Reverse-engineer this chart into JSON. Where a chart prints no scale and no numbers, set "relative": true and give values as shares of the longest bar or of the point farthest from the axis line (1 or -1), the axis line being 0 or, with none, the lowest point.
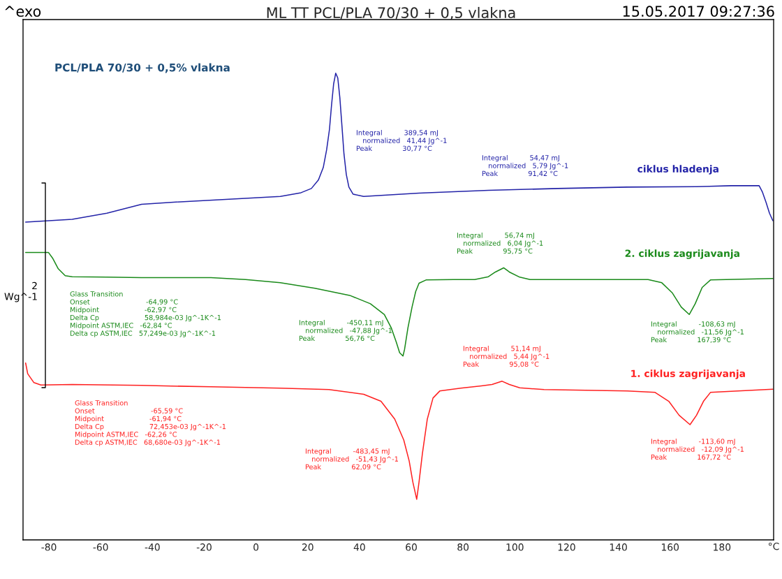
{
  "chart_data": {
    "type": "line",
    "relative": true,
    "title": "ML TT PCL/PLA 70/30 + 0,5 vlakna",
    "subtitle": "PCL/PLA 70/30 + 0,5% vlakna",
    "xlabel": "°C",
    "xlim": [
      -90,
      200
    ],
    "xticks": [
      -80,
      -60,
      -40,
      -20,
      0,
      20,
      40,
      60,
      80,
      100,
      120,
      140,
      160,
      180
    ],
    "tick_labels": "x",
    "grid": false,
    "legend": false,
    "series": [
      {
        "name": "ciklus hladenja",
        "color": "#2323a8",
        "x": [
          -89.0,
          -71.0,
          -57.6,
          -44.2,
          -30.8,
          -6.7,
          9.4,
          17.4,
          21.4,
          24.1,
          26.0,
          27.3,
          28.4,
          29.2,
          30.0,
          30.8,
          31.6,
          32.4,
          33.2,
          34.0,
          34.9,
          35.9,
          37.5,
          41.6,
          63.0,
          89.8,
          116.6,
          143.4,
          170.2,
          183.6,
          194.4,
          195.7,
          197.1,
          198.4,
          199.7
        ],
        "values": [
          0.681,
          0.687,
          0.7,
          0.719,
          0.724,
          0.731,
          0.736,
          0.744,
          0.753,
          0.771,
          0.798,
          0.836,
          0.88,
          0.932,
          0.977,
          1.0,
          0.99,
          0.948,
          0.888,
          0.827,
          0.783,
          0.756,
          0.741,
          0.736,
          0.743,
          0.749,
          0.753,
          0.756,
          0.757,
          0.759,
          0.759,
          0.745,
          0.723,
          0.7,
          0.684
        ]
      },
      {
        "name": "2. ciklus zagrijavanja",
        "color": "#1a8a1a",
        "x": [
          -89.0,
          -80.2,
          -78.6,
          -76.4,
          -73.7,
          -71.0,
          -57.6,
          -44.2,
          -17.4,
          -4.0,
          9.4,
          22.8,
          36.2,
          44.2,
          49.6,
          52.3,
          54.2,
          55.5,
          56.8,
          57.4,
          58.7,
          60.3,
          61.7,
          63.0,
          65.7,
          76.4,
          84.5,
          89.8,
          92.5,
          95.7,
          97.9,
          101.9,
          105.9,
          143.4,
          151.5,
          156.8,
          160.9,
          164.3,
          167.4,
          169.7,
          172.4,
          175.6,
          199.7
        ],
        "values": [
          0.616,
          0.616,
          0.604,
          0.581,
          0.566,
          0.564,
          0.563,
          0.562,
          0.562,
          0.558,
          0.551,
          0.539,
          0.524,
          0.506,
          0.483,
          0.454,
          0.424,
          0.401,
          0.394,
          0.408,
          0.454,
          0.499,
          0.532,
          0.55,
          0.557,
          0.558,
          0.558,
          0.564,
          0.574,
          0.583,
          0.574,
          0.563,
          0.558,
          0.558,
          0.558,
          0.551,
          0.529,
          0.499,
          0.483,
          0.506,
          0.541,
          0.557,
          0.56
        ]
      },
      {
        "name": "1. ciklus zagrijavanja",
        "color": "#ff2020",
        "x": [
          -89.0,
          -88.2,
          -85.8,
          -83.1,
          -71.0,
          -44.2,
          -17.4,
          9.4,
          28.2,
          41.6,
          48.3,
          53.6,
          57.1,
          59.2,
          60.6,
          62.1,
          63.0,
          64.3,
          66.2,
          68.4,
          71.0,
          79.1,
          87.1,
          91.2,
          95.1,
          97.9,
          101.9,
          111.3,
          143.4,
          154.2,
          159.5,
          163.5,
          167.7,
          170.2,
          172.9,
          175.6,
          199.7
        ],
        "values": [
          0.379,
          0.356,
          0.337,
          0.332,
          0.333,
          0.331,
          0.328,
          0.325,
          0.322,
          0.312,
          0.297,
          0.259,
          0.214,
          0.169,
          0.124,
          0.087,
          0.124,
          0.185,
          0.259,
          0.304,
          0.319,
          0.325,
          0.33,
          0.333,
          0.34,
          0.333,
          0.326,
          0.322,
          0.319,
          0.316,
          0.297,
          0.267,
          0.247,
          0.267,
          0.297,
          0.316,
          0.323
        ]
      }
    ],
    "annotations": [
      "^exo",
      "15.05.2017 09:27:36",
      "2\nWg^-1",
      "Integral          389,54 mJ\n   normalized   41,44 Jg^-1\nPeak              30,77 °C",
      "Integral          54,47 mJ\n   normalized   5,79 Jg^-1\nPeak              91,42 °C",
      "Glass Transition\nOnset                          -64,99 °C\nMidpoint                     -62,97 °C\nDelta Cp                     58,984e-03 Jg^-1K^-1\nMidpoint ASTM,IEC   -62,84 °C\nDelta cp ASTM,IEC   57,249e-03 Jg^-1K^-1",
      "Integral          -450,11 mJ\n   normalized   -47,88 Jg^-1\nPeak              56,76 °C",
      "Integral          56,74 mJ\n   normalized   6,04 Jg^-1\nPeak              95,75 °C",
      "Integral          -108,63 mJ\n   normalized   -11,56 Jg^-1\nPeak              167,39 °C",
      "Glass Transition\nOnset                          -65,59 °C\nMidpoint                     -61,94 °C\nDelta Cp                     72,453e-03 Jg^-1K^-1\nMidpoint ASTM,IEC   -62,26 °C\nDelta cp ASTM,IEC   68,680e-03 Jg^-1K^-1",
      "Integral          -483,45 mJ\n   normalized   -51,43 Jg^-1\nPeak              62,09 °C",
      "Integral          51,14 mJ\n   normalized   5,44 Jg^-1\nPeak              95,08 °C",
      "Integral          -113,60 mJ\n   normalized   -12,09 Jg^-1\nPeak              167,72 °C"
    ]
  }
}
